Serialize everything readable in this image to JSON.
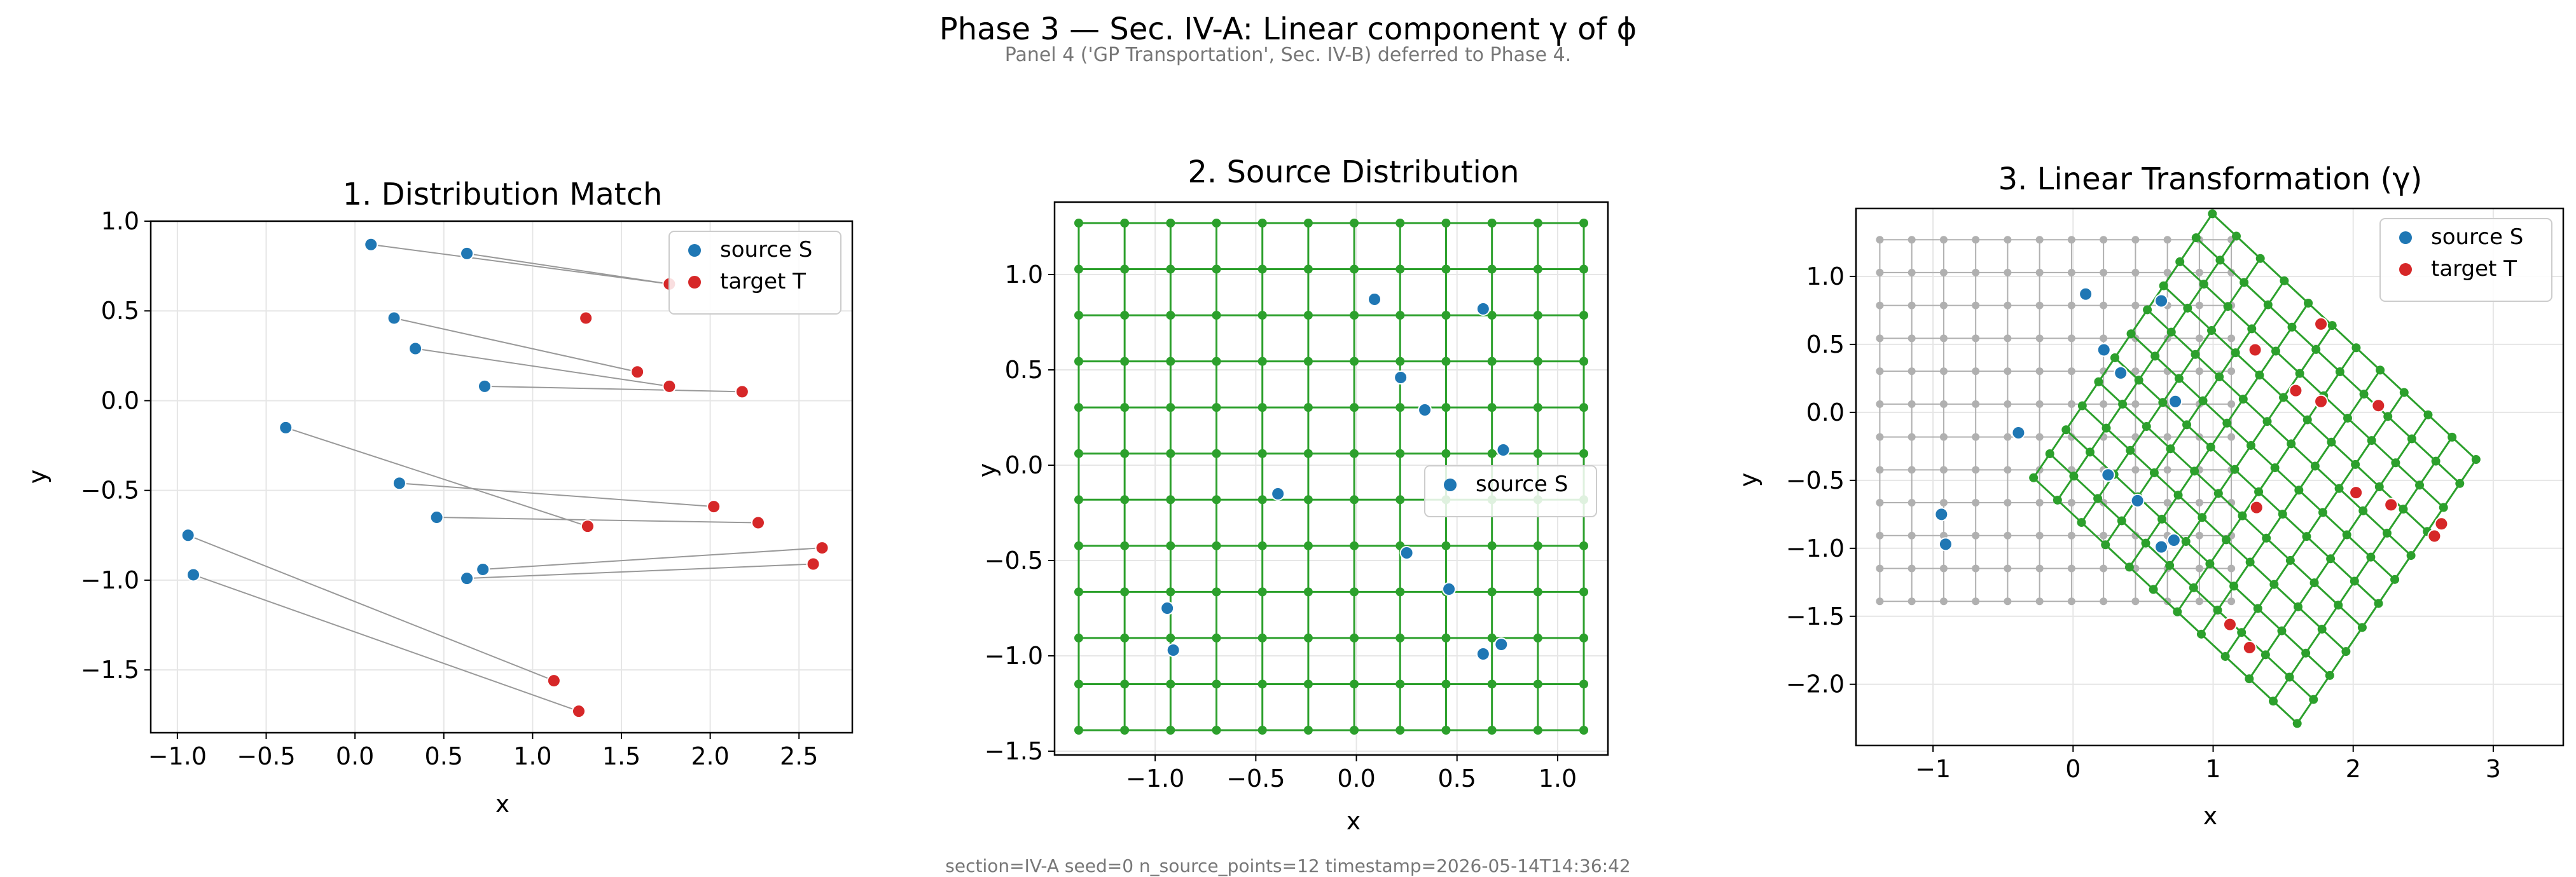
{
  "figure": {
    "title": "Phase 3 — Sec. IV-A: Linear component γ of ϕ",
    "subtitle": "Panel 4 ('GP Transportation', Sec. IV-B) deferred to Phase 4.",
    "footer": "section=IV-A  seed=0  n_source_points=12  timestamp=2026-05-14T14:36:42"
  },
  "colors": {
    "source": "#1f77b4",
    "target": "#d62728",
    "grid_transformed": "#2ca02c",
    "grid_original": "#b0b0b0",
    "match_line": "#999999"
  },
  "chart_data": [
    {
      "type": "scatter",
      "title": "1. Distribution Match",
      "xlabel": "x",
      "ylabel": "y",
      "xlim": [
        -1.15,
        2.8
      ],
      "ylim": [
        -1.85,
        1.0
      ],
      "xticks": [
        -1.0,
        -0.5,
        0.0,
        0.5,
        1.0,
        1.5,
        2.0,
        2.5
      ],
      "yticks": [
        1.0,
        0.5,
        0.0,
        -0.5,
        -1.0,
        -1.5
      ],
      "grid": true,
      "legend": "top-right",
      "series": [
        {
          "name": "source S",
          "points": [
            [
              0.09,
              0.87
            ],
            [
              0.63,
              0.82
            ],
            [
              0.22,
              0.46
            ],
            [
              0.34,
              0.29
            ],
            [
              0.73,
              0.08
            ],
            [
              -0.39,
              -0.15
            ],
            [
              0.25,
              -0.46
            ],
            [
              0.46,
              -0.65
            ],
            [
              -0.94,
              -0.75
            ],
            [
              0.72,
              -0.94
            ],
            [
              0.63,
              -0.99
            ],
            [
              -0.91,
              -0.97
            ]
          ]
        },
        {
          "name": "target T",
          "points": [
            [
              1.3,
              0.46
            ],
            [
              1.77,
              0.65
            ],
            [
              1.59,
              0.16
            ],
            [
              1.77,
              0.08
            ],
            [
              2.18,
              0.05
            ],
            [
              1.31,
              -0.7
            ],
            [
              2.02,
              -0.59
            ],
            [
              2.27,
              -0.68
            ],
            [
              1.12,
              -1.56
            ],
            [
              2.63,
              -0.82
            ],
            [
              2.58,
              -0.91
            ],
            [
              1.26,
              -1.73
            ]
          ]
        }
      ],
      "matches": [
        [
          0,
          1
        ],
        [
          1,
          1
        ],
        [
          2,
          2
        ],
        [
          3,
          3
        ],
        [
          4,
          4
        ],
        [
          5,
          5
        ],
        [
          6,
          6
        ],
        [
          7,
          7
        ],
        [
          8,
          8
        ],
        [
          9,
          9
        ],
        [
          10,
          10
        ],
        [
          11,
          11
        ]
      ]
    },
    {
      "type": "scatter",
      "title": "2. Source Distribution",
      "xlabel": "x",
      "ylabel": "y",
      "xlim": [
        -1.5,
        1.25
      ],
      "ylim": [
        -1.52,
        1.38
      ],
      "xticks": [
        -1.0,
        -0.5,
        0.0,
        0.5,
        1.0
      ],
      "yticks": [
        1.0,
        0.5,
        0.0,
        -0.5,
        -1.0,
        -1.5
      ],
      "grid": true,
      "legend": "center-right",
      "mesh": {
        "xmin": -1.38,
        "xmax": 1.13,
        "ymin": -1.39,
        "ymax": 1.27,
        "n": 12
      },
      "series": [
        {
          "name": "source S",
          "points": [
            [
              0.09,
              0.87
            ],
            [
              0.63,
              0.82
            ],
            [
              0.22,
              0.46
            ],
            [
              0.34,
              0.29
            ],
            [
              0.73,
              0.08
            ],
            [
              -0.39,
              -0.15
            ],
            [
              0.25,
              -0.46
            ],
            [
              0.46,
              -0.65
            ],
            [
              -0.94,
              -0.75
            ],
            [
              0.72,
              -0.94
            ],
            [
              0.63,
              -0.99
            ],
            [
              -0.91,
              -0.97
            ]
          ]
        }
      ]
    },
    {
      "type": "scatter",
      "title": "3. Linear Transformation (γ)",
      "xlabel": "x",
      "ylabel": "y",
      "xlim": [
        -1.55,
        3.5
      ],
      "ylim": [
        -2.45,
        1.5
      ],
      "xticks": [
        -1,
        0,
        1,
        2,
        3
      ],
      "yticks": [
        1.0,
        0.5,
        0.0,
        -0.5,
        -1.0,
        -1.5,
        -2.0
      ],
      "grid": true,
      "legend": "top-right",
      "mesh": {
        "xmin": -1.38,
        "xmax": 1.13,
        "ymin": -1.39,
        "ymax": 1.27,
        "n": 12
      },
      "gamma": {
        "A": [
          [
            0.75,
            0.48
          ],
          [
            -0.72,
            0.73
          ]
        ],
        "b": [
          1.42,
          -0.46
        ]
      },
      "series": [
        {
          "name": "source S",
          "points": [
            [
              0.09,
              0.87
            ],
            [
              0.63,
              0.82
            ],
            [
              0.22,
              0.46
            ],
            [
              0.34,
              0.29
            ],
            [
              0.73,
              0.08
            ],
            [
              -0.39,
              -0.15
            ],
            [
              0.25,
              -0.46
            ],
            [
              0.46,
              -0.65
            ],
            [
              -0.94,
              -0.75
            ],
            [
              0.72,
              -0.94
            ],
            [
              0.63,
              -0.99
            ],
            [
              -0.91,
              -0.97
            ]
          ]
        },
        {
          "name": "target T",
          "points": [
            [
              1.3,
              0.46
            ],
            [
              1.77,
              0.65
            ],
            [
              1.59,
              0.16
            ],
            [
              1.77,
              0.08
            ],
            [
              2.18,
              0.05
            ],
            [
              1.31,
              -0.7
            ],
            [
              2.02,
              -0.59
            ],
            [
              2.27,
              -0.68
            ],
            [
              1.12,
              -1.56
            ],
            [
              2.63,
              -0.82
            ],
            [
              2.58,
              -0.91
            ],
            [
              1.26,
              -1.73
            ]
          ]
        }
      ]
    }
  ]
}
